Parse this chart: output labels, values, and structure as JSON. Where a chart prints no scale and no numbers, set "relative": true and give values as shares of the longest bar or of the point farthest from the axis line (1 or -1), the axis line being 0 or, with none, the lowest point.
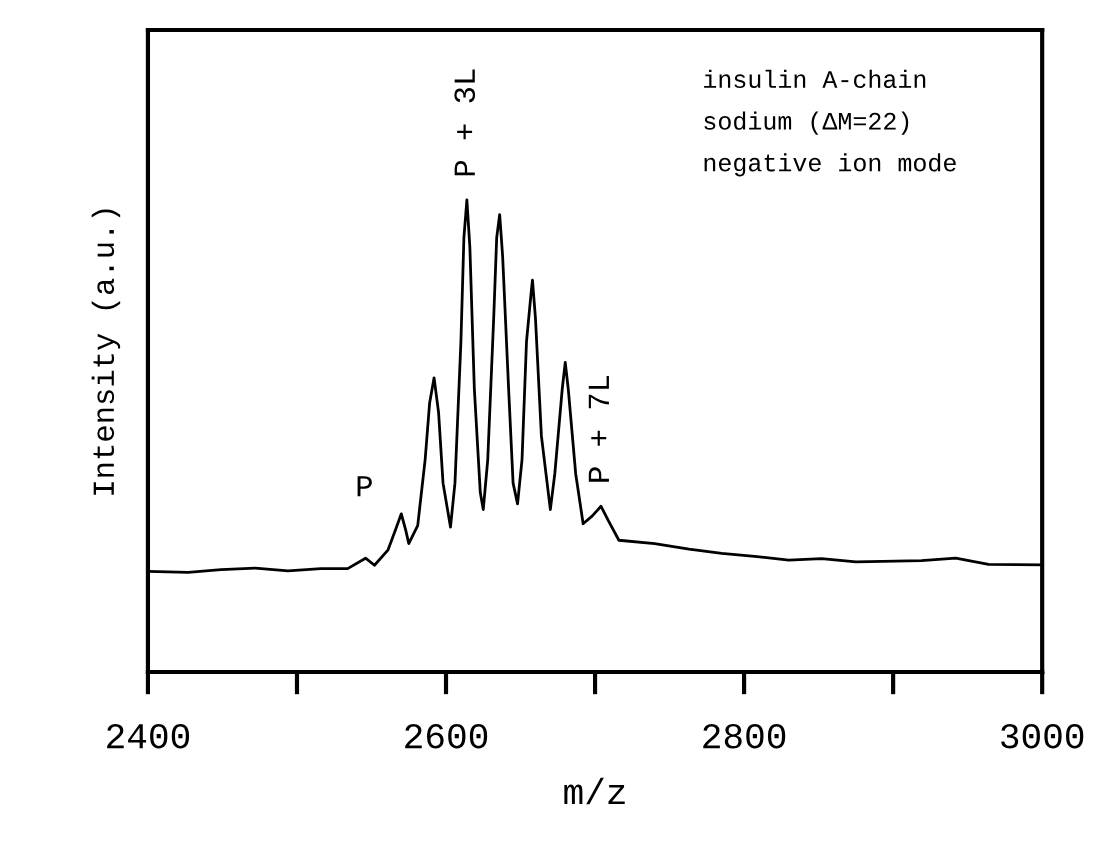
{
  "chart_data": {
    "type": "line",
    "relative": true,
    "xlabel": "m/z",
    "ylabel": "Intensity (a.u.)",
    "xlim": [
      2400,
      3000
    ],
    "xticks": [
      2400,
      {
        "value": 2500,
        "label": null
      },
      2600,
      {
        "value": 2700,
        "label": null
      },
      2800,
      {
        "value": 2900,
        "label": null
      },
      3000
    ],
    "grid": false,
    "marker": "none",
    "line_style": "solid",
    "annotations": [
      {
        "text": "P",
        "x": 2570,
        "y": 0.335
      },
      {
        "text": "P + 3L",
        "x": 2614,
        "y": 1
      },
      {
        "text": "P + 7L",
        "x": 2704,
        "y": 0.351
      },
      "insulin A-chain",
      "sodium (ΔM=22)",
      "negative ion mode"
    ],
    "series": [
      {
        "color": "#000000",
        "x": [
          2400,
          2427,
          2449,
          2472,
          2494,
          2516,
          2534,
          2546,
          2552,
          2561,
          2566,
          2570,
          2573,
          2575,
          2581,
          2586,
          2589,
          2592,
          2595,
          2598,
          2603,
          2606,
          2610,
          2612,
          2614,
          2616,
          2619,
          2623,
          2625,
          2628,
          2632,
          2634,
          2636,
          2638,
          2642,
          2645,
          2648,
          2651,
          2654,
          2657,
          2658,
          2660,
          2664,
          2670,
          2673,
          2678,
          2680,
          2682,
          2687,
          2692,
          2698,
          2704,
          2709,
          2716,
          2740,
          2763,
          2785,
          2807,
          2830,
          2852,
          2875,
          2919,
          2942,
          2964,
          3000
        ],
        "values": [
          0.213,
          0.211,
          0.217,
          0.22,
          0.214,
          0.219,
          0.219,
          0.241,
          0.226,
          0.258,
          0.3,
          0.335,
          0.3,
          0.272,
          0.31,
          0.45,
          0.57,
          0.623,
          0.55,
          0.4,
          0.307,
          0.4,
          0.7,
          0.92,
          1,
          0.9,
          0.6,
          0.38,
          0.344,
          0.45,
          0.75,
          0.92,
          0.969,
          0.88,
          0.6,
          0.4,
          0.356,
          0.45,
          0.7,
          0.8,
          0.83,
          0.75,
          0.5,
          0.344,
          0.42,
          0.6,
          0.656,
          0.6,
          0.42,
          0.314,
          0.33,
          0.351,
          0.32,
          0.279,
          0.272,
          0.26,
          0.251,
          0.245,
          0.237,
          0.24,
          0.233,
          0.236,
          0.241,
          0.228,
          0.227
        ]
      }
    ]
  }
}
